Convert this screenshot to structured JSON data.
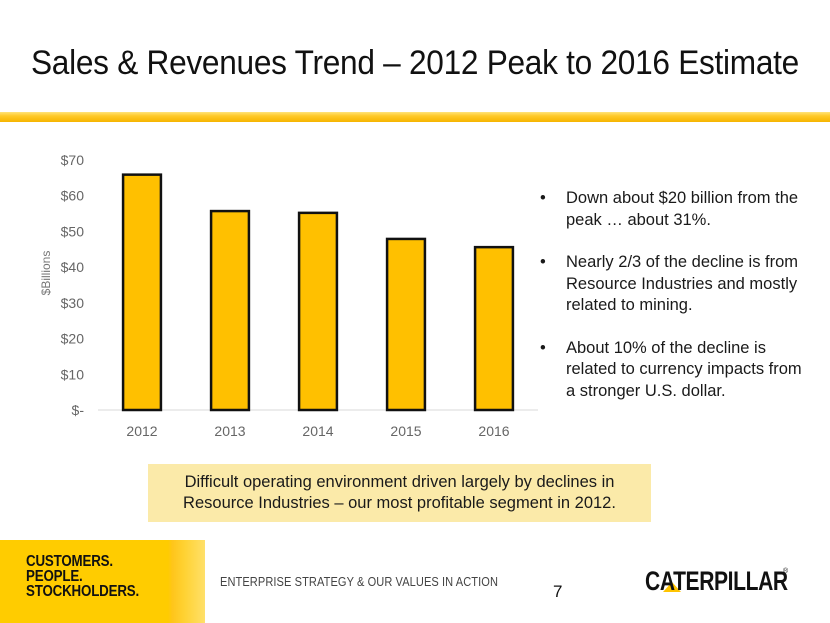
{
  "slide": {
    "title": "Sales & Revenues Trend – 2012 Peak to 2016 Estimate",
    "page_number": "7",
    "brand_color": "#FFC400"
  },
  "bullets": [
    "Down about $20 billion from the peak … about 31%.",
    "Nearly 2/3 of the decline is from Resource Industries and mostly related to mining.",
    "About 10% of the decline is related to currency impacts from a stronger U.S. dollar."
  ],
  "bullet_glyph": "•",
  "callout": {
    "line1": "Difficult operating environment driven largely by declines in",
    "line2": "Resource Industries – our most profitable segment in 2012."
  },
  "footer": {
    "tagline": [
      "CUSTOMERS.",
      "PEOPLE.",
      "STOCKHOLDERS."
    ],
    "strategy": "ENTERPRISE STRATEGY & OUR VALUES IN ACTION",
    "logo_text": "CATERPILLAR",
    "logo_mark": "®"
  },
  "chart_data": {
    "type": "bar",
    "title": "",
    "xlabel": "",
    "ylabel": "$Billions",
    "categories": [
      "2012",
      "2013",
      "2014",
      "2015",
      "2016"
    ],
    "values": [
      65.9,
      55.7,
      55.2,
      47.9,
      45.6
    ],
    "ylim": [
      0,
      70
    ],
    "yticks": [
      0,
      10,
      20,
      30,
      40,
      50,
      60,
      70
    ],
    "ytick_labels": [
      "$-",
      "$10",
      "$20",
      "$30",
      "$40",
      "$50",
      "$60",
      "$70"
    ],
    "grid": false,
    "legend": "none",
    "bar_color": "#FFC000",
    "bar_edge_color": "#111111"
  }
}
